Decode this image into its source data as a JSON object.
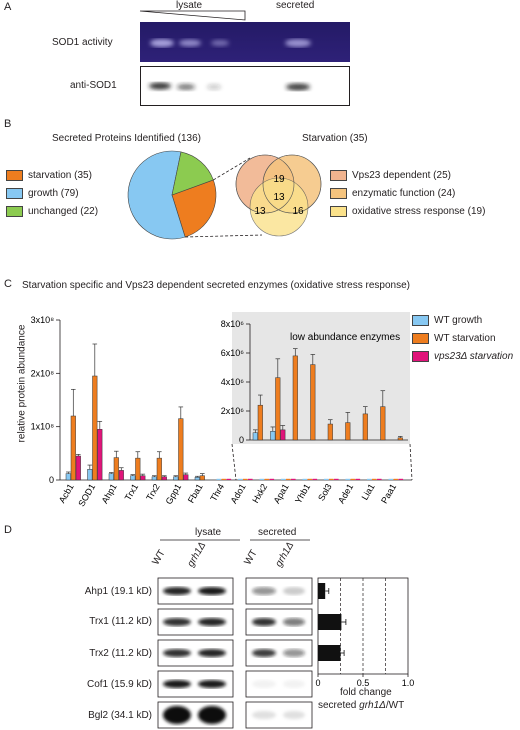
{
  "panels": {
    "a": "A",
    "b": "B",
    "c": "C",
    "d": "D"
  },
  "panel_a": {
    "lysate_label": "lysate",
    "secreted_label": "secreted",
    "row1_label": "SOD1 activity",
    "row2_label": "anti-SOD1"
  },
  "panel_b": {
    "pie_title": "Secreted Proteins Identified (136)",
    "legend": [
      {
        "label": "starvation (35)",
        "color": "#ee7d1f"
      },
      {
        "label": "growth (79)",
        "color": "#87c8f2"
      },
      {
        "label": "unchanged (22)",
        "color": "#8ccb50"
      }
    ],
    "pie_values": [
      35,
      79,
      22
    ],
    "venn_title": "Starvation (35)",
    "venn_numbers": [
      "19",
      "13",
      "13",
      "16"
    ],
    "venn_legend": [
      {
        "label": "Vps23 dependent (25)",
        "color": "#f1b48f"
      },
      {
        "label": "enzymatic function (24)",
        "color": "#f5c47e"
      },
      {
        "label": "oxidative stress response (19)",
        "color": "#fbe28b"
      }
    ]
  },
  "panel_c": {
    "title": "Starvation specific and Vps23 dependent secreted enzymes (oxidative stress response)",
    "ylabel": "relative protein abundance",
    "inset_title": "low abundance enzymes",
    "legend": [
      {
        "label": "WT growth",
        "color": "#87c8f2"
      },
      {
        "label": "WT starvation",
        "color": "#ee7d1f"
      },
      {
        "label": "vps23Δ starvation",
        "color": "#e0147a"
      }
    ]
  },
  "chart_data": [
    {
      "type": "bar",
      "categories": [
        "Acb1",
        "SOD1",
        "Ahp1",
        "Trx1",
        "Trx2",
        "Gpp1",
        "Fba1",
        "Thr4",
        "Ado1",
        "Hxk2",
        "Apa1",
        "Yhb1",
        "Sol3",
        "Ade1",
        "Lia1",
        "Paa1"
      ],
      "series": [
        {
          "name": "WT growth",
          "values": [
            0.12,
            0.2,
            0.12,
            0.08,
            0.06,
            0.06,
            0.05,
            0,
            0,
            0,
            0,
            0,
            0,
            0,
            0,
            0
          ],
          "err": [
            0.03,
            0.08,
            0.02,
            0.02,
            0.02,
            0.02,
            0.02,
            0,
            0,
            0,
            0,
            0,
            0,
            0,
            0,
            0
          ]
        },
        {
          "name": "WT starvation",
          "values": [
            1.2,
            1.95,
            0.42,
            0.41,
            0.41,
            1.15,
            0.08,
            0,
            0,
            0,
            0,
            0,
            0,
            0,
            0,
            0
          ],
          "err": [
            0.5,
            0.6,
            0.12,
            0.12,
            0.12,
            0.22,
            0.04,
            0,
            0,
            0,
            0,
            0,
            0,
            0,
            0,
            0
          ]
        },
        {
          "name": "vps23Δ starvation",
          "values": [
            0.45,
            0.95,
            0.18,
            0.08,
            0.06,
            0.1,
            0,
            0,
            0,
            0,
            0,
            0,
            0,
            0,
            0,
            0
          ],
          "err": [
            0.03,
            0.15,
            0.05,
            0.03,
            0.02,
            0.03,
            0,
            0,
            0,
            0,
            0,
            0,
            0,
            0,
            0,
            0
          ]
        }
      ],
      "yticks": [
        "0",
        "1x10⁸",
        "2x10⁸",
        "3x10⁸"
      ],
      "ylim": [
        0,
        3
      ],
      "ylabel": "relative protein abundance"
    },
    {
      "type": "bar",
      "title": "low abundance enzymes",
      "categories": [
        "Thr4",
        "Ado1",
        "Hxk2",
        "Apa1",
        "Yhb1",
        "Sol3",
        "Ade1",
        "Lia1",
        "Paa1"
      ],
      "series": [
        {
          "name": "WT growth",
          "values": [
            0.5,
            0.6,
            0,
            0,
            0,
            0,
            0,
            0,
            0
          ],
          "err": [
            0.2,
            0.3,
            0,
            0,
            0,
            0,
            0,
            0,
            0
          ]
        },
        {
          "name": "WT starvation",
          "values": [
            2.4,
            4.3,
            5.8,
            5.2,
            1.1,
            1.2,
            1.8,
            2.3,
            0.15
          ],
          "err": [
            0.7,
            1.3,
            0.5,
            0.7,
            0.3,
            0.7,
            0.5,
            1.1,
            0.1
          ]
        },
        {
          "name": "vps23Δ starvation",
          "values": [
            0,
            0.7,
            0,
            0,
            0,
            0,
            0,
            0,
            0
          ],
          "err": [
            0,
            0.3,
            0,
            0,
            0,
            0,
            0,
            0,
            0
          ]
        }
      ],
      "yticks": [
        "0",
        "2x10⁶",
        "4x10⁶",
        "6x10⁶",
        "8x10⁶"
      ],
      "ylim": [
        0,
        8
      ]
    },
    {
      "type": "bar",
      "orientation": "horizontal",
      "categories": [
        "Ahp1",
        "Trx1",
        "Trx2",
        "Cof1",
        "Bgl2"
      ],
      "values": [
        0.08,
        0.26,
        0.25,
        0,
        0
      ],
      "err": [
        0.04,
        0.05,
        0.04,
        0,
        0
      ],
      "xticks": [
        "0",
        "0.5",
        "1.0"
      ],
      "xlim": [
        0,
        1
      ],
      "xlabel": "fold change secreted grh1Δ/WT"
    }
  ],
  "panel_d": {
    "lysate_label": "lysate",
    "secreted_label": "secreted",
    "lane_labels": [
      "WT",
      "grh1Δ",
      "WT",
      "grh1Δ"
    ],
    "rows": [
      "Ahp1 (19.1 kD)",
      "Trx1 (11.2 kD)",
      "Trx2 (11.2 kD)",
      "Cof1 (15.9 kD)",
      "Bgl2 (34.1 kD)"
    ],
    "xlabel_line1": "fold change",
    "xlabel_line2_pre": "secreted ",
    "xlabel_line2_gene": "grh1Δ",
    "xlabel_line2_post": "/WT"
  }
}
